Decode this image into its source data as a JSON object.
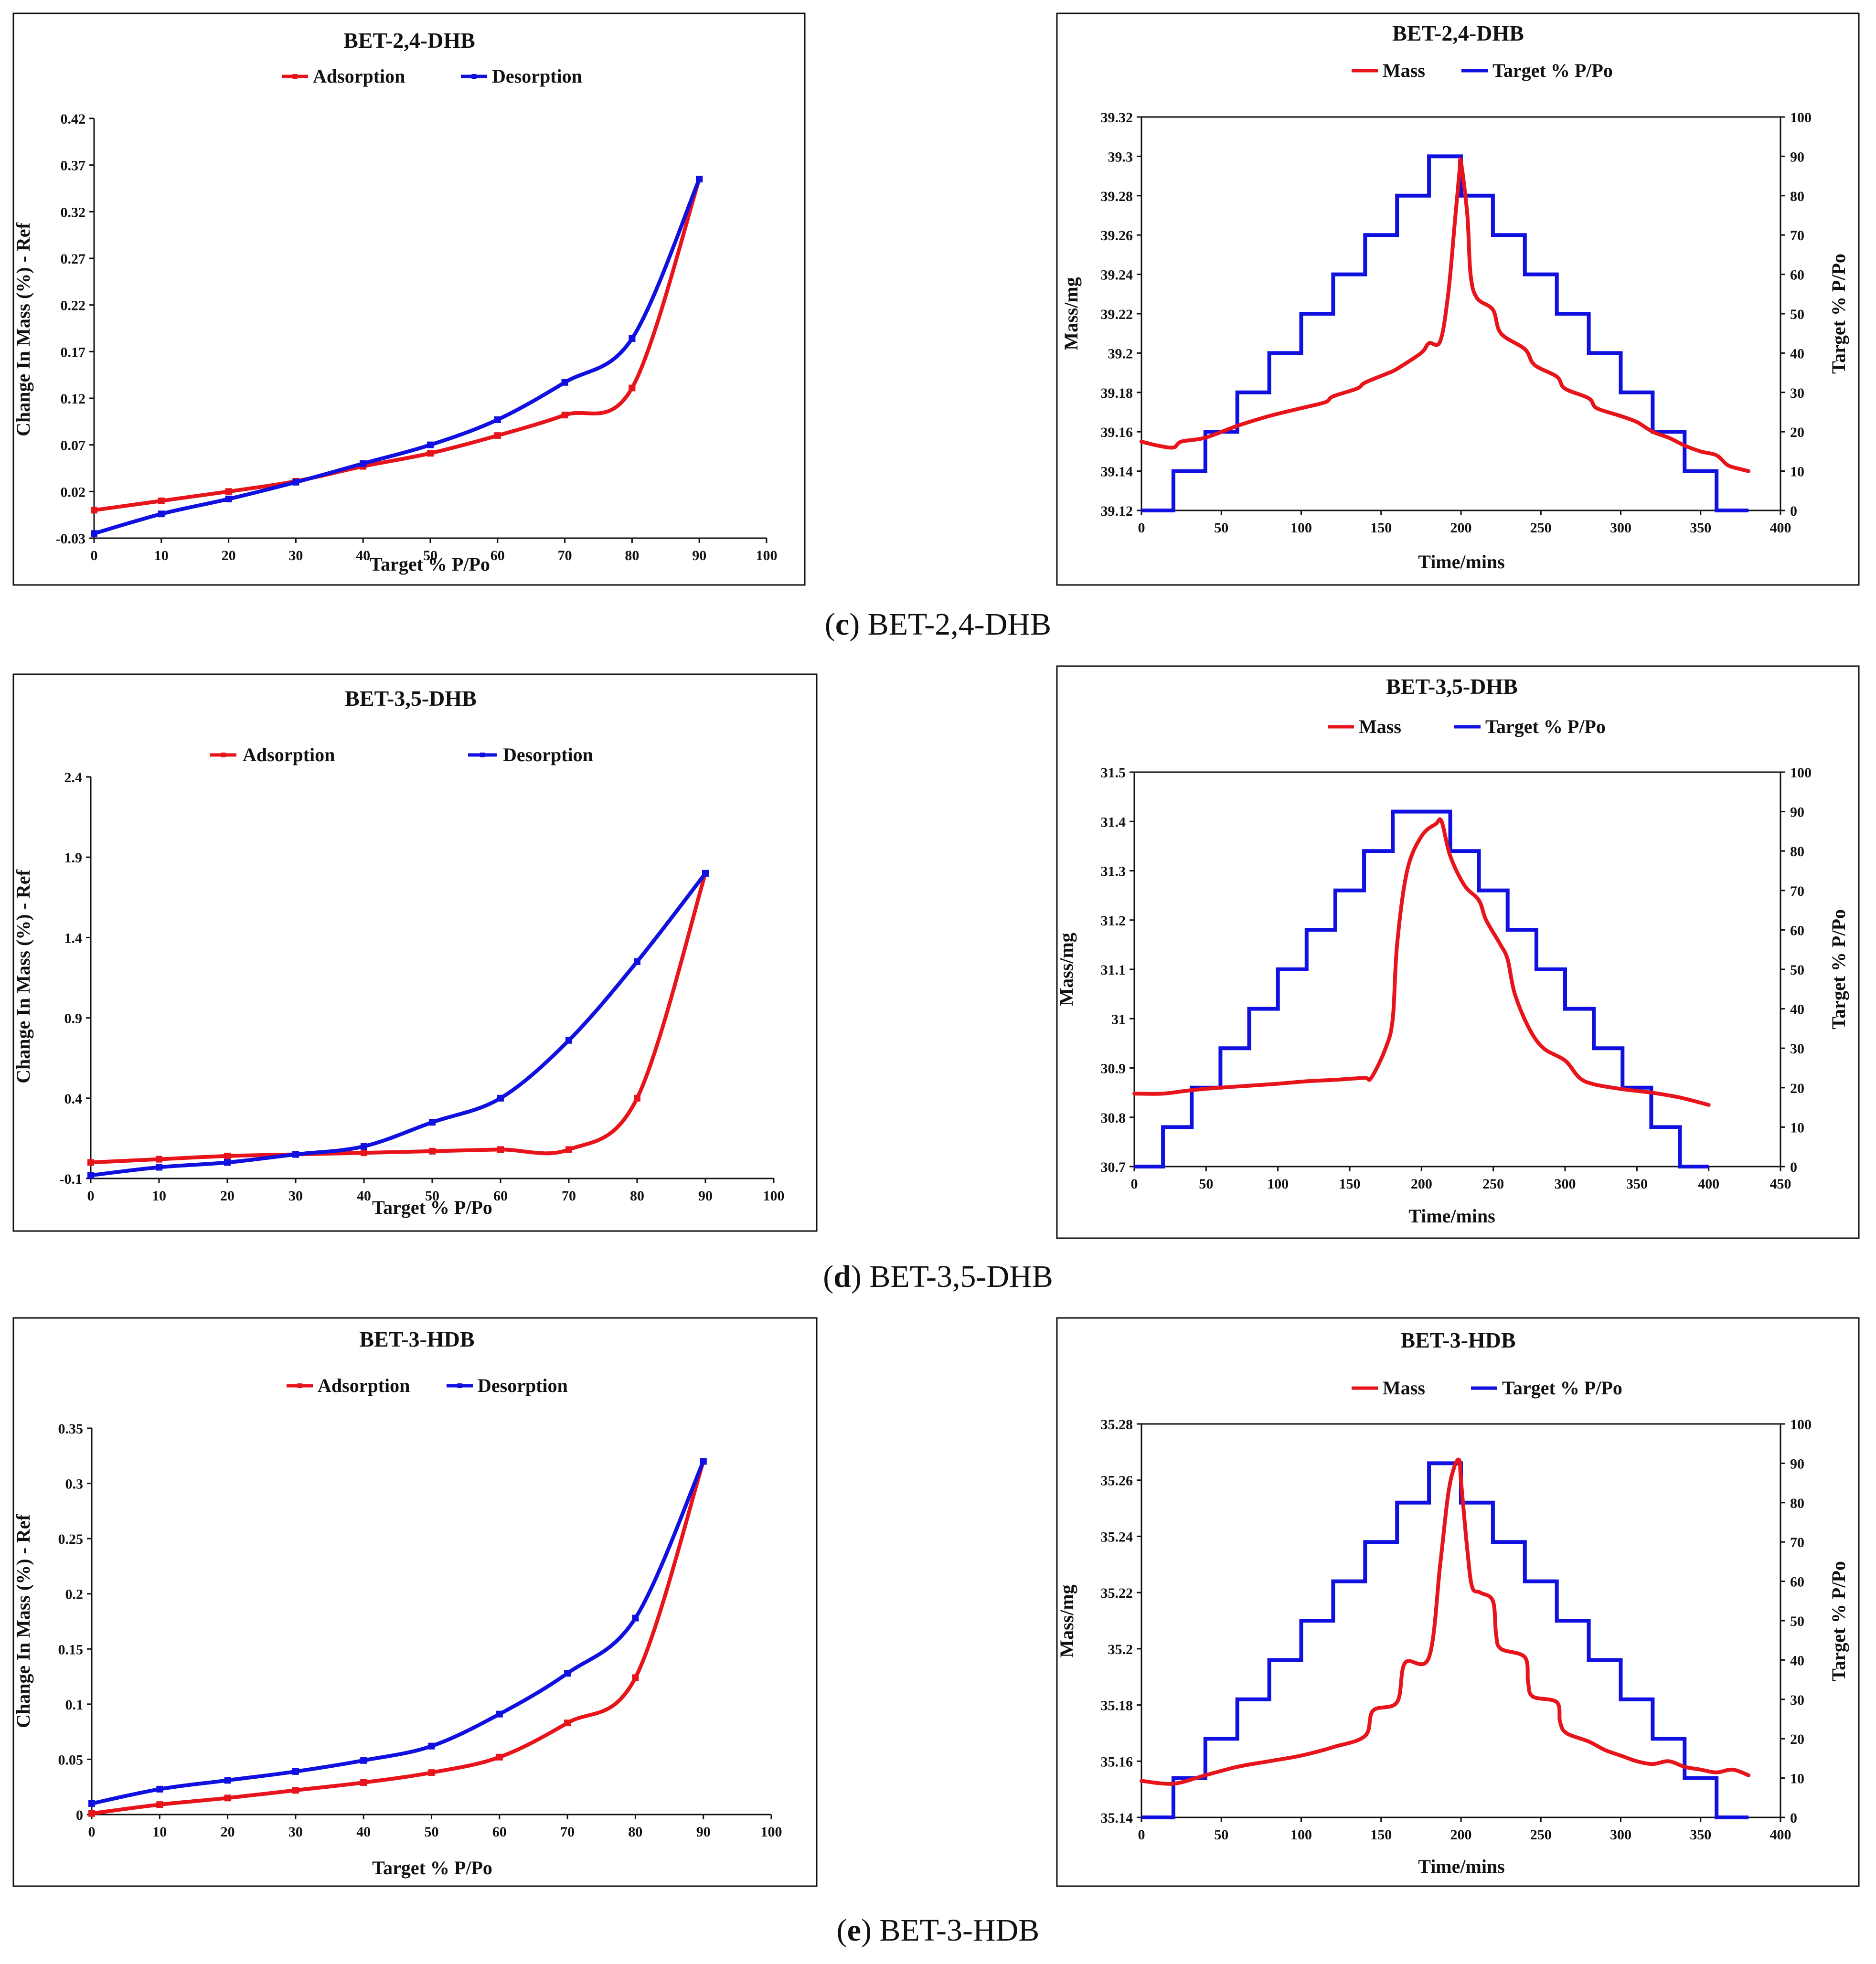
{
  "figure": {
    "captions": [
      {
        "letter": "c",
        "text": " BET-2,4-DHB"
      },
      {
        "letter": "d",
        "text": " BET-3,5-DHB"
      },
      {
        "letter": "e",
        "text": " BET-3-HDB"
      }
    ]
  },
  "colors": {
    "adsorption": "#e8141c",
    "desorption": "#1010e0",
    "mass": "#e8141c",
    "target": "#1010e0"
  },
  "chart_data": [
    {
      "id": "c-left",
      "type": "line",
      "title": "BET-2,4-DHB",
      "legend": [
        "Adsorption",
        "Desorption"
      ],
      "xlabel": "Target % P/Po",
      "ylabel": "Change In Mass (%) - Ref",
      "xlim": [
        0,
        100
      ],
      "ylim": [
        -0.03,
        0.42
      ],
      "xticks": [
        "0",
        "10",
        "20",
        "30",
        "40",
        "50",
        "60",
        "70",
        "80",
        "90",
        "100"
      ],
      "yticks": [
        "-0.03",
        "0.02",
        "0.07",
        "0.12",
        "0.17",
        "0.22",
        "0.27",
        "0.32",
        "0.37",
        "0.42"
      ],
      "series": [
        {
          "name": "Adsorption",
          "x": [
            0,
            10,
            20,
            30,
            40,
            50,
            60,
            70,
            80,
            90
          ],
          "y": [
            -0.0,
            0.01,
            0.02,
            0.031,
            0.047,
            0.061,
            0.08,
            0.102,
            0.131,
            0.355
          ]
        },
        {
          "name": "Desorption",
          "x": [
            0,
            10,
            20,
            30,
            40,
            50,
            60,
            70,
            80,
            90
          ],
          "y": [
            -0.025,
            -0.004,
            0.012,
            0.03,
            0.05,
            0.07,
            0.097,
            0.137,
            0.184,
            0.355
          ]
        }
      ]
    },
    {
      "id": "c-right",
      "type": "line",
      "title": "BET-2,4-DHB",
      "legend": [
        "Mass",
        "Target % P/Po"
      ],
      "xlabel": "Time/mins",
      "ylabel": "Mass/mg",
      "y2label": "Target % P/Po",
      "xlim": [
        0,
        400
      ],
      "ylim": [
        39.12,
        39.32
      ],
      "y2lim": [
        0,
        100
      ],
      "xticks": [
        "0",
        "50",
        "100",
        "150",
        "200",
        "250",
        "300",
        "350",
        "400"
      ],
      "yticks": [
        "39.12",
        "39.14",
        "39.16",
        "39.18",
        "39.2",
        "39.22",
        "39.24",
        "39.26",
        "39.28",
        "39.3",
        "39.32"
      ],
      "y2ticks": [
        "0",
        "10",
        "20",
        "30",
        "40",
        "50",
        "60",
        "70",
        "80",
        "90",
        "100"
      ],
      "series": [
        {
          "name": "Mass",
          "x": [
            0,
            10,
            20,
            25,
            40,
            60,
            80,
            100,
            115,
            120,
            135,
            140,
            155,
            160,
            175,
            180,
            187,
            192,
            196,
            199,
            200,
            204,
            206,
            210,
            220,
            225,
            240,
            246,
            260,
            265,
            280,
            285,
            300,
            310,
            320,
            330,
            340,
            350,
            360,
            367,
            375,
            380
          ],
          "y": [
            39.155,
            39.153,
            39.152,
            39.155,
            39.157,
            39.163,
            39.168,
            39.172,
            39.175,
            39.178,
            39.182,
            39.185,
            39.19,
            39.192,
            39.2,
            39.205,
            39.206,
            39.23,
            39.265,
            39.292,
            39.297,
            39.27,
            39.24,
            39.228,
            39.222,
            39.21,
            39.202,
            39.194,
            39.188,
            39.182,
            39.177,
            39.172,
            39.168,
            39.165,
            39.16,
            39.157,
            39.153,
            39.15,
            39.148,
            39.143,
            39.141,
            39.14
          ]
        },
        {
          "name": "Target % P/Po",
          "x": [
            0,
            20,
            20,
            40,
            40,
            60,
            60,
            80,
            80,
            100,
            100,
            120,
            120,
            140,
            140,
            160,
            160,
            180,
            180,
            200,
            200,
            220,
            220,
            240,
            240,
            260,
            260,
            280,
            280,
            300,
            300,
            320,
            320,
            340,
            340,
            360,
            360,
            380
          ],
          "y": [
            0,
            0,
            10,
            10,
            20,
            20,
            30,
            30,
            40,
            40,
            50,
            50,
            60,
            60,
            70,
            70,
            80,
            80,
            90,
            90,
            80,
            80,
            70,
            70,
            60,
            60,
            50,
            50,
            40,
            40,
            30,
            30,
            20,
            20,
            10,
            10,
            0,
            0
          ]
        }
      ]
    },
    {
      "id": "d-left",
      "type": "line",
      "title": "BET-3,5-DHB",
      "legend": [
        "Adsorption",
        "Desorption"
      ],
      "xlabel": "Target % P/Po",
      "ylabel": "Change In Mass (%) - Ref",
      "xlim": [
        0,
        100
      ],
      "ylim": [
        -0.1,
        2.4
      ],
      "xticks": [
        "0",
        "10",
        "20",
        "30",
        "40",
        "50",
        "60",
        "70",
        "80",
        "90",
        "100"
      ],
      "yticks": [
        "-0.1",
        "0.4",
        "0.9",
        "1.4",
        "1.9",
        "2.4"
      ],
      "series": [
        {
          "name": "Adsorption",
          "x": [
            0,
            10,
            20,
            30,
            40,
            50,
            60,
            70,
            80,
            90
          ],
          "y": [
            0.0,
            0.02,
            0.04,
            0.05,
            0.06,
            0.07,
            0.08,
            0.08,
            0.4,
            1.8
          ]
        },
        {
          "name": "Desorption",
          "x": [
            0,
            10,
            20,
            30,
            40,
            50,
            60,
            70,
            80,
            90
          ],
          "y": [
            -0.08,
            -0.03,
            0.0,
            0.05,
            0.1,
            0.25,
            0.4,
            0.76,
            1.25,
            1.8
          ]
        }
      ]
    },
    {
      "id": "d-right",
      "type": "line",
      "title": "BET-3,5-DHB",
      "legend": [
        "Mass",
        "Target % P/Po"
      ],
      "xlabel": "Time/mins",
      "ylabel": "Mass/mg",
      "y2label": "Target % P/Po",
      "xlim": [
        0,
        450
      ],
      "ylim": [
        30.7,
        31.5
      ],
      "y2lim": [
        0,
        100
      ],
      "xticks": [
        "0",
        "50",
        "100",
        "150",
        "200",
        "250",
        "300",
        "350",
        "400",
        "450"
      ],
      "yticks": [
        "30.7",
        "30.8",
        "30.9",
        "31",
        "31.1",
        "31.2",
        "31.3",
        "31.4",
        "31.5"
      ],
      "y2ticks": [
        "0",
        "10",
        "20",
        "30",
        "40",
        "50",
        "60",
        "70",
        "80",
        "90",
        "100"
      ],
      "series": [
        {
          "name": "Mass",
          "x": [
            0,
            20,
            40,
            60,
            80,
            100,
            120,
            140,
            160,
            165,
            175,
            180,
            183,
            190,
            200,
            210,
            214,
            220,
            230,
            240,
            245,
            255,
            260,
            265,
            275,
            285,
            300,
            310,
            320,
            340,
            360,
            380,
            400
          ],
          "y": [
            30.848,
            30.848,
            30.855,
            30.86,
            30.864,
            30.868,
            30.873,
            30.876,
            30.88,
            30.88,
            30.94,
            31.0,
            31.15,
            31.3,
            31.37,
            31.395,
            31.4,
            31.33,
            31.27,
            31.24,
            31.2,
            31.15,
            31.12,
            31.05,
            30.98,
            30.94,
            30.915,
            30.88,
            30.867,
            30.857,
            30.85,
            30.84,
            30.825
          ]
        },
        {
          "name": "Target % P/Po",
          "x": [
            0,
            20,
            20,
            40,
            40,
            60,
            60,
            80,
            80,
            100,
            100,
            120,
            120,
            140,
            140,
            160,
            160,
            180,
            180,
            220,
            220,
            240,
            240,
            260,
            260,
            280,
            280,
            300,
            300,
            320,
            320,
            340,
            340,
            360,
            360,
            380,
            380,
            400
          ],
          "y": [
            0,
            0,
            10,
            10,
            20,
            20,
            30,
            30,
            40,
            40,
            50,
            50,
            60,
            60,
            70,
            70,
            80,
            80,
            90,
            90,
            80,
            80,
            70,
            70,
            60,
            60,
            50,
            50,
            40,
            40,
            30,
            30,
            20,
            20,
            10,
            10,
            0,
            0
          ]
        }
      ]
    },
    {
      "id": "e-left",
      "type": "line",
      "title": "BET-3-HDB",
      "legend": [
        "Adsorption",
        "Desorption"
      ],
      "xlabel": "Target % P/Po",
      "ylabel": "Change In Mass (%) - Ref",
      "xlim": [
        0,
        100
      ],
      "ylim": [
        0,
        0.35
      ],
      "xticks": [
        "0",
        "10",
        "20",
        "30",
        "40",
        "50",
        "60",
        "70",
        "80",
        "90",
        "100"
      ],
      "yticks": [
        "0",
        "0.05",
        "0.1",
        "0.15",
        "0.2",
        "0.25",
        "0.3",
        "0.35"
      ],
      "series": [
        {
          "name": "Adsorption",
          "x": [
            0,
            10,
            20,
            30,
            40,
            50,
            60,
            70,
            80,
            90
          ],
          "y": [
            0.001,
            0.009,
            0.015,
            0.022,
            0.029,
            0.038,
            0.052,
            0.083,
            0.124,
            0.32
          ]
        },
        {
          "name": "Desorption",
          "x": [
            0,
            10,
            20,
            30,
            40,
            50,
            60,
            70,
            80,
            90
          ],
          "y": [
            0.01,
            0.023,
            0.031,
            0.039,
            0.049,
            0.062,
            0.091,
            0.128,
            0.178,
            0.32
          ]
        }
      ]
    },
    {
      "id": "e-right",
      "type": "line",
      "title": "BET-3-HDB",
      "legend": [
        "Mass",
        "Target % P/Po"
      ],
      "xlabel": "Time/mins",
      "ylabel": "Mass/mg",
      "y2label": "Target % P/Po",
      "xlim": [
        0,
        400
      ],
      "ylim": [
        35.14,
        35.28
      ],
      "y2lim": [
        0,
        100
      ],
      "xticks": [
        "0",
        "50",
        "100",
        "150",
        "200",
        "250",
        "300",
        "350",
        "400"
      ],
      "yticks": [
        "35.14",
        "35.16",
        "35.18",
        "35.2",
        "35.22",
        "35.24",
        "35.26",
        "35.28"
      ],
      "y2ticks": [
        "0",
        "10",
        "20",
        "30",
        "40",
        "50",
        "60",
        "70",
        "80",
        "90",
        "100"
      ],
      "series": [
        {
          "name": "Mass",
          "x": [
            0,
            20,
            40,
            60,
            80,
            100,
            120,
            140,
            145,
            160,
            165,
            180,
            187,
            192,
            196,
            199,
            200,
            204,
            207,
            212,
            220,
            222,
            225,
            240,
            242,
            245,
            260,
            262,
            266,
            280,
            290,
            300,
            310,
            320,
            330,
            340,
            350,
            360,
            370,
            380
          ],
          "y": [
            35.153,
            35.152,
            35.155,
            35.158,
            35.16,
            35.162,
            35.165,
            35.169,
            35.178,
            35.181,
            35.195,
            35.197,
            35.23,
            35.255,
            35.265,
            35.267,
            35.26,
            35.235,
            35.222,
            35.22,
            35.217,
            35.205,
            35.2,
            35.197,
            35.188,
            35.183,
            35.181,
            35.174,
            35.17,
            35.167,
            35.164,
            35.162,
            35.16,
            35.159,
            35.16,
            35.158,
            35.157,
            35.156,
            35.157,
            35.155
          ]
        },
        {
          "name": "Target % P/Po",
          "x": [
            0,
            20,
            20,
            40,
            40,
            60,
            60,
            80,
            80,
            100,
            100,
            120,
            120,
            140,
            140,
            160,
            160,
            180,
            180,
            200,
            200,
            220,
            220,
            240,
            240,
            260,
            260,
            280,
            280,
            300,
            300,
            320,
            320,
            340,
            340,
            360,
            360,
            380
          ],
          "y": [
            0,
            0,
            10,
            10,
            20,
            20,
            30,
            30,
            40,
            40,
            50,
            50,
            60,
            60,
            70,
            70,
            80,
            80,
            90,
            90,
            80,
            80,
            70,
            70,
            60,
            60,
            50,
            50,
            40,
            40,
            30,
            30,
            20,
            20,
            10,
            10,
            0,
            0
          ]
        }
      ]
    }
  ]
}
